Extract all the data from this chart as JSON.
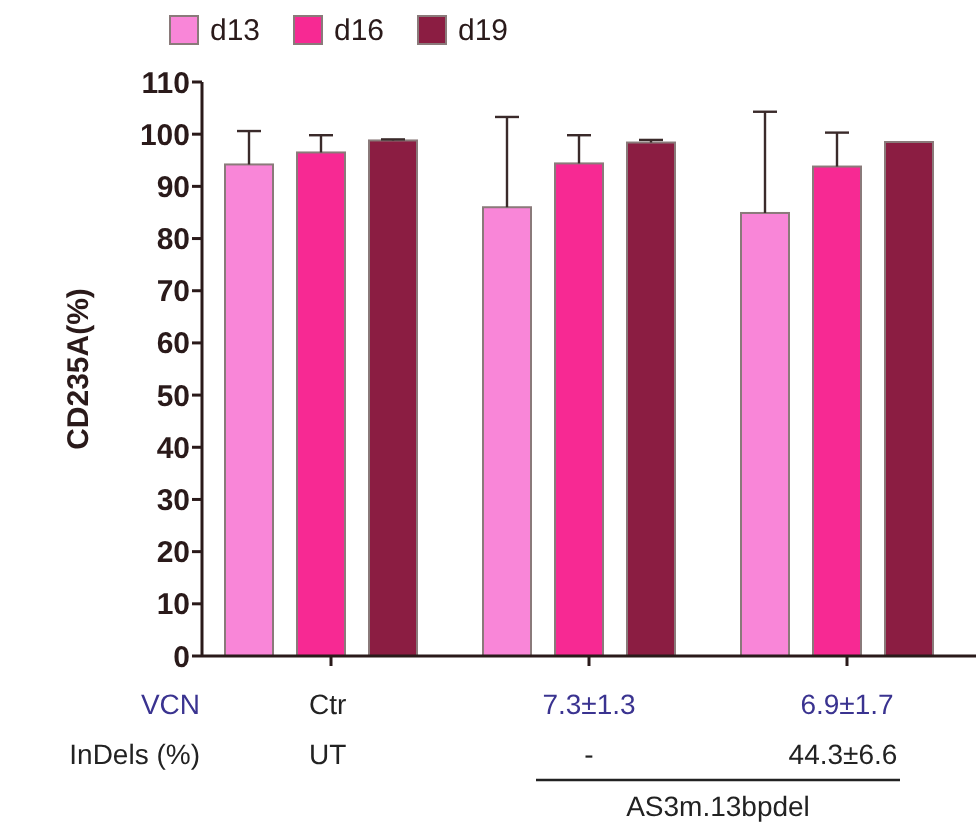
{
  "chart_data": {
    "type": "bar",
    "ylabel": "CD235A(%)",
    "categories": [
      "Ctr",
      "7.3±1.3",
      "6.9±1.7"
    ],
    "series": [
      {
        "name": "d13",
        "color": "#f986d8",
        "values": [
          94.2,
          86.0,
          84.9
        ],
        "errors": [
          6.4,
          17.3,
          19.4
        ]
      },
      {
        "name": "d16",
        "color": "#f72993",
        "values": [
          96.5,
          94.4,
          93.8
        ],
        "errors": [
          3.3,
          5.4,
          6.5
        ]
      },
      {
        "name": "d19",
        "color": "#8b1d42",
        "values": [
          98.8,
          98.4,
          98.5
        ],
        "errors": [
          0.2,
          0.5,
          null
        ]
      }
    ],
    "ylim": [
      0,
      110
    ],
    "yticks": [
      0,
      10,
      20,
      30,
      40,
      50,
      60,
      70,
      80,
      90,
      100,
      110
    ],
    "legend": "top left",
    "annotations": [
      "VCN",
      "InDels (%)",
      "UT",
      "-",
      "44.3±6.6",
      "AS3m.13bpdel"
    ]
  }
}
